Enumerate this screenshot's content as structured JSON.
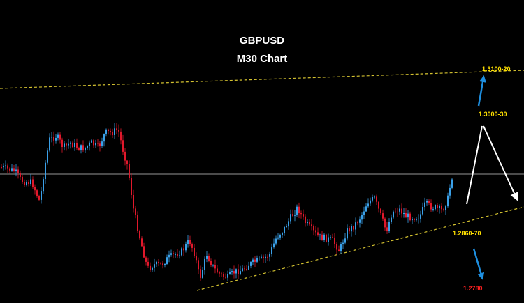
{
  "header": {
    "symbol": "GBPUSD",
    "timeframe": "M30 Chart"
  },
  "chart_data": {
    "type": "candlestick",
    "instrument": "GBPUSD",
    "timeframe": "M30",
    "background": "#000000",
    "colors": {
      "up": "#3aa0e8",
      "down": "#e0182b",
      "trendline": "#d4c230",
      "current_price_line": "#c8c8c8",
      "arrow_up": "#1e8fe0",
      "arrow_scenario": "#ffffff",
      "label_primary": "#ffe000",
      "label_target_low": "#ff2020"
    },
    "levels": [
      {
        "label": "1.3100-20",
        "role": "upper-target",
        "color": "#ffe000"
      },
      {
        "label": "1.3000-30",
        "role": "resistance",
        "color": "#ffe000"
      },
      {
        "label": "1.2860-70",
        "role": "support",
        "color": "#ffe000"
      },
      {
        "label": "1.2780",
        "role": "lower-target",
        "color": "#ff2020"
      }
    ],
    "trendlines": [
      {
        "name": "upper-channel",
        "style": "dashed"
      },
      {
        "name": "lower-channel",
        "style": "dashed"
      }
    ],
    "scenario_arrows": [
      "up to 1.3000-30",
      "down to 1.2860-70",
      "breakout up to 1.3100-20",
      "breakdown to 1.2780"
    ],
    "grid": false,
    "legend": "none"
  }
}
